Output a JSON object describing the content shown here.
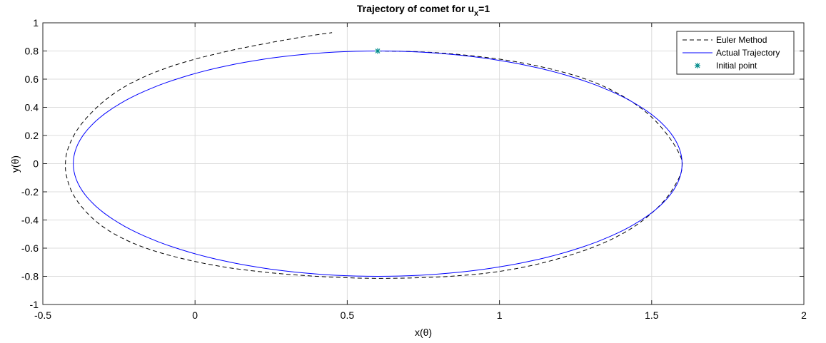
{
  "chart_data": {
    "type": "line",
    "title": "Trajectory of comet for u",
    "title_subscript": "x",
    "title_suffix": "=1",
    "xlabel": "x(θ)",
    "ylabel": "y(θ)",
    "xlim": [
      -0.5,
      2
    ],
    "ylim": [
      -1,
      1
    ],
    "x_ticks": [
      -0.5,
      0,
      0.5,
      1,
      1.5,
      2
    ],
    "x_tick_labels": [
      "-0.5",
      "0",
      "0.5",
      "1",
      "1.5",
      "2"
    ],
    "y_ticks": [
      -1,
      -0.8,
      -0.6,
      -0.4,
      -0.2,
      0,
      0.2,
      0.4,
      0.6,
      0.8,
      1
    ],
    "y_tick_labels": [
      "-1",
      "-0.8",
      "-0.6",
      "-0.4",
      "-0.2",
      "0",
      "0.2",
      "0.4",
      "0.6",
      "0.8",
      "1"
    ],
    "grid": true,
    "legend_position": "top-right",
    "series": [
      {
        "name": "Euler Method",
        "style": "dashed",
        "color": "#000000",
        "points": [
          [
            0.6,
            0.8
          ],
          [
            0.75,
            0.793
          ],
          [
            0.9,
            0.768
          ],
          [
            1.05,
            0.725
          ],
          [
            1.2,
            0.655
          ],
          [
            1.32,
            0.57
          ],
          [
            1.42,
            0.46
          ],
          [
            1.5,
            0.33
          ],
          [
            1.56,
            0.18
          ],
          [
            1.595,
            0.05
          ],
          [
            1.6,
            -0.02
          ],
          [
            1.59,
            -0.1
          ],
          [
            1.55,
            -0.24
          ],
          [
            1.49,
            -0.37
          ],
          [
            1.41,
            -0.49
          ],
          [
            1.3,
            -0.6
          ],
          [
            1.15,
            -0.7
          ],
          [
            1.0,
            -0.765
          ],
          [
            0.85,
            -0.798
          ],
          [
            0.7,
            -0.812
          ],
          [
            0.55,
            -0.813
          ],
          [
            0.4,
            -0.8
          ],
          [
            0.25,
            -0.775
          ],
          [
            0.1,
            -0.735
          ],
          [
            -0.05,
            -0.67
          ],
          [
            -0.18,
            -0.585
          ],
          [
            -0.28,
            -0.48
          ],
          [
            -0.35,
            -0.36
          ],
          [
            -0.4,
            -0.22
          ],
          [
            -0.423,
            -0.08
          ],
          [
            -0.425,
            0.03
          ],
          [
            -0.415,
            0.12
          ],
          [
            -0.39,
            0.23
          ],
          [
            -0.35,
            0.34
          ],
          [
            -0.29,
            0.46
          ],
          [
            -0.22,
            0.56
          ],
          [
            -0.13,
            0.65
          ],
          [
            -0.02,
            0.73
          ],
          [
            0.1,
            0.795
          ],
          [
            0.2,
            0.84
          ],
          [
            0.3,
            0.88
          ],
          [
            0.4,
            0.915
          ],
          [
            0.45,
            0.93
          ]
        ]
      },
      {
        "name": "Actual Trajectory",
        "style": "solid",
        "color": "#0000ff",
        "ellipse": {
          "center_x": 0.6,
          "center_y": 0,
          "semi_axis_x": 1.0,
          "semi_axis_y": 0.8
        }
      },
      {
        "name": "Initial point",
        "style": "marker",
        "marker": "*",
        "color": "#008b8b",
        "points": [
          [
            0.6,
            0.8
          ]
        ]
      }
    ]
  }
}
